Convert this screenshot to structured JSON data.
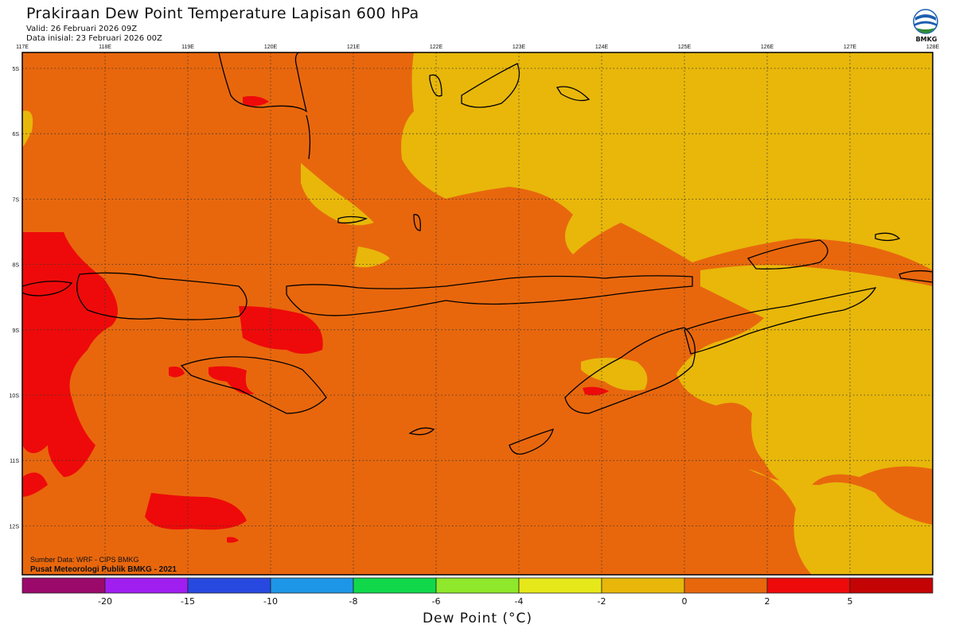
{
  "header": {
    "title": "Prakiraan Dew Point Temperature Lapisan 600 hPa",
    "valid": "Valid: 26 Februari 2026 09Z",
    "init": "Data inisial: 23 Februari 2026 00Z"
  },
  "logo": {
    "icon": "bmkg-logo-icon",
    "text": "BMKG"
  },
  "map": {
    "lon_labels": [
      "117E",
      "118E",
      "119E",
      "120E",
      "121E",
      "122E",
      "123E",
      "124E",
      "125E",
      "126E",
      "127E",
      "128E"
    ],
    "lat_labels": [
      "5S",
      "6S",
      "7S",
      "8S",
      "9S",
      "10S",
      "11S",
      "12S"
    ],
    "source": "Sumber Data: WRF - CIPS BMKG",
    "credit": "Pusat Meteorologi Publik BMKG - 2021"
  },
  "colorbar": {
    "title": "Dew Point (°C)",
    "labels": [
      "-20",
      "-15",
      "-10",
      "-8",
      "-6",
      "-4",
      "-2",
      "0",
      "2",
      "5"
    ],
    "colors": [
      "#9b0a6b",
      "#a01ff0",
      "#2849e0",
      "#1e96e8",
      "#11d84a",
      "#8fe82b",
      "#e7e81a",
      "#e8b70a",
      "#e8670d",
      "#ee0a0a",
      "#c40404"
    ]
  },
  "palette": {
    "orange": "#e8670d",
    "yellow": "#e8b70a",
    "red": "#ee0a0a"
  }
}
